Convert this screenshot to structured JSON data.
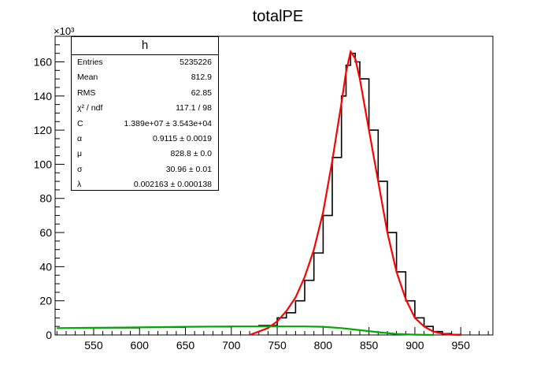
{
  "chart_data": {
    "type": "line",
    "title": "totalPE",
    "xlabel": "",
    "ylabel": "",
    "y_scale_label": "×10³",
    "xlim": [
      508,
      985
    ],
    "ylim": [
      0,
      175
    ],
    "x_ticks": [
      550,
      600,
      650,
      700,
      750,
      800,
      850,
      900,
      950
    ],
    "y_ticks": [
      0,
      20,
      40,
      60,
      80,
      100,
      120,
      140,
      160
    ],
    "grid": false,
    "legend": "none",
    "series": [
      {
        "role": "histogram",
        "color": "#000000",
        "points": [
          [
            510,
            4
          ],
          [
            550,
            4.2
          ],
          [
            600,
            4.5
          ],
          [
            650,
            4.8
          ],
          [
            700,
            5
          ],
          [
            730,
            5.5
          ],
          [
            750,
            10
          ],
          [
            760,
            13
          ],
          [
            770,
            20
          ],
          [
            780,
            32
          ],
          [
            790,
            48
          ],
          [
            800,
            70
          ],
          [
            810,
            104
          ],
          [
            820,
            140
          ],
          [
            825,
            158
          ],
          [
            830,
            165
          ],
          [
            835,
            160
          ],
          [
            840,
            150
          ],
          [
            850,
            120
          ],
          [
            860,
            90
          ],
          [
            870,
            60
          ],
          [
            880,
            37
          ],
          [
            890,
            20
          ],
          [
            900,
            10
          ],
          [
            910,
            5
          ],
          [
            920,
            2
          ],
          [
            930,
            0.8
          ],
          [
            940,
            0.3
          ],
          [
            950,
            0
          ]
        ]
      },
      {
        "role": "fit",
        "color": "#ff0000",
        "points": [
          [
            720,
            0
          ],
          [
            740,
            4
          ],
          [
            750,
            8
          ],
          [
            760,
            14
          ],
          [
            770,
            22
          ],
          [
            780,
            34
          ],
          [
            790,
            50
          ],
          [
            800,
            72
          ],
          [
            810,
            102
          ],
          [
            820,
            136
          ],
          [
            825,
            154
          ],
          [
            830,
            166
          ],
          [
            835,
            162
          ],
          [
            840,
            150
          ],
          [
            850,
            120
          ],
          [
            860,
            90
          ],
          [
            870,
            60
          ],
          [
            880,
            37
          ],
          [
            890,
            21
          ],
          [
            900,
            10
          ],
          [
            910,
            5
          ],
          [
            920,
            2
          ],
          [
            930,
            0.8
          ],
          [
            940,
            0.2
          ],
          [
            950,
            0
          ]
        ]
      },
      {
        "role": "background-component",
        "color": "#00aa00",
        "points": [
          [
            510,
            4
          ],
          [
            550,
            4.2
          ],
          [
            600,
            4.5
          ],
          [
            650,
            4.8
          ],
          [
            700,
            5
          ],
          [
            750,
            5
          ],
          [
            780,
            5
          ],
          [
            800,
            4.8
          ],
          [
            820,
            4
          ],
          [
            840,
            2.8
          ],
          [
            860,
            1.6
          ],
          [
            880,
            0.6
          ],
          [
            900,
            0.2
          ],
          [
            920,
            0
          ]
        ]
      }
    ]
  },
  "stats": {
    "title": "h",
    "rows": [
      {
        "label": "Entries",
        "value": "5235226"
      },
      {
        "label": "Mean",
        "value": "812.9"
      },
      {
        "label": "RMS",
        "value": "62.85"
      },
      {
        "label": "χ² / ndf",
        "value": "117.1 / 98"
      },
      {
        "label": "C",
        "value": "1.389e+07 ± 3.543e+04"
      },
      {
        "label": "α",
        "value": "0.9115 ± 0.0019"
      },
      {
        "label": "μ",
        "value": "828.8 ± 0.0"
      },
      {
        "label": "σ",
        "value": "30.96 ± 0.01"
      },
      {
        "label": "λ",
        "value": "0.002163 ± 0.000138"
      }
    ]
  }
}
